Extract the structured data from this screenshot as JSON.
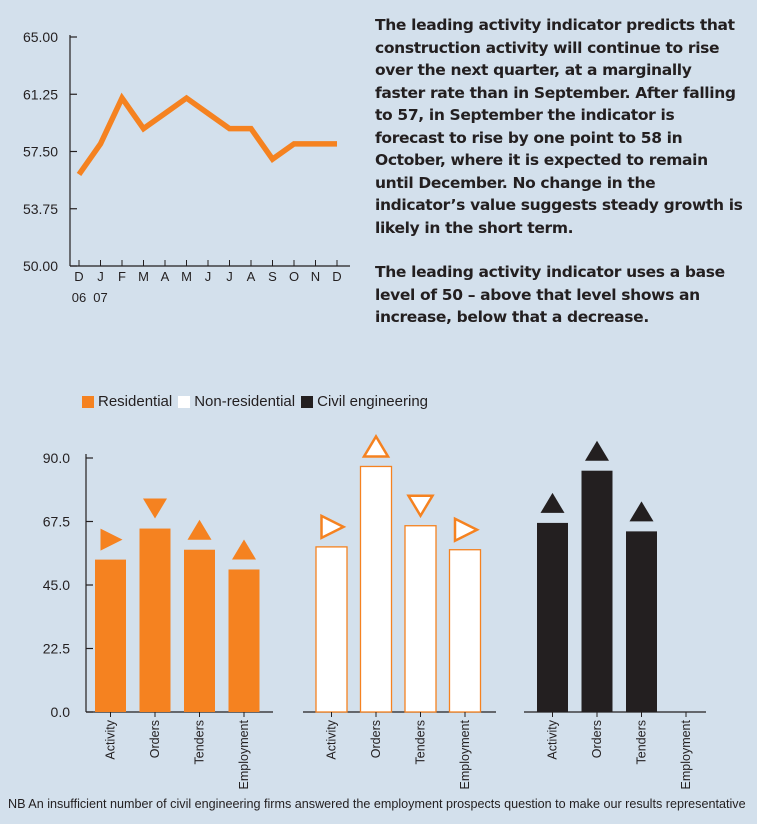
{
  "commentary": {
    "paragraph_1": "The leading activity indicator predicts that construction activity will continue to rise over the next quarter, at a marginally faster rate than in September. After falling to 57, in September the indicator is forecast to rise by one point to 58 in October, where it is expected to remain until December. No change in the indicator’s value suggests steady growth is likely in the short term.",
    "paragraph_2": "The leading activity indicator uses a base level of 50 – above that level shows an increase, below that a decrease."
  },
  "legend": [
    {
      "label": "Residential",
      "color": "#f58220"
    },
    {
      "label": "Non-residential",
      "color": "#ffffff"
    },
    {
      "label": "Civil engineering",
      "color": "#231f20"
    }
  ],
  "footnote": "NB An insufficient number of civil engineering firms answered the employment prospects question to make our results representative",
  "chart_data": [
    {
      "type": "line",
      "x": [
        "D",
        "J",
        "F",
        "M",
        "A",
        "M",
        "J",
        "J",
        "A",
        "S",
        "O",
        "N",
        "D"
      ],
      "year_labels": [
        "06",
        "07"
      ],
      "series": [
        {
          "values": [
            56,
            58,
            61,
            59,
            60,
            61,
            60,
            59,
            59,
            57,
            58,
            58,
            58
          ],
          "color": "#f58220"
        }
      ],
      "yticks": [
        "65.00",
        "61.25",
        "57.50",
        "53.75",
        "50.00"
      ],
      "ylim": [
        50,
        65
      ]
    },
    {
      "type": "bar",
      "categories": [
        "Activity",
        "Orders",
        "Tenders",
        "Employment"
      ],
      "series": [
        {
          "name": "Residential",
          "values": [
            54,
            65,
            57.5,
            50.5
          ],
          "trend": [
            "right",
            "down",
            "up",
            "up"
          ],
          "color": "#f58220"
        },
        {
          "name": "Non-residential",
          "values": [
            58.5,
            87,
            66,
            57.5
          ],
          "trend": [
            "right",
            "up",
            "down",
            "right"
          ],
          "color": "#ffffff"
        },
        {
          "name": "Civil engineering",
          "values": [
            67,
            85.5,
            64,
            null
          ],
          "trend": [
            "up",
            "up",
            "up",
            null
          ],
          "color": "#231f20"
        }
      ],
      "yticks": [
        "90.0",
        "67.5",
        "45.0",
        "22.5",
        "0.0"
      ],
      "ylim": [
        0,
        90
      ]
    }
  ]
}
